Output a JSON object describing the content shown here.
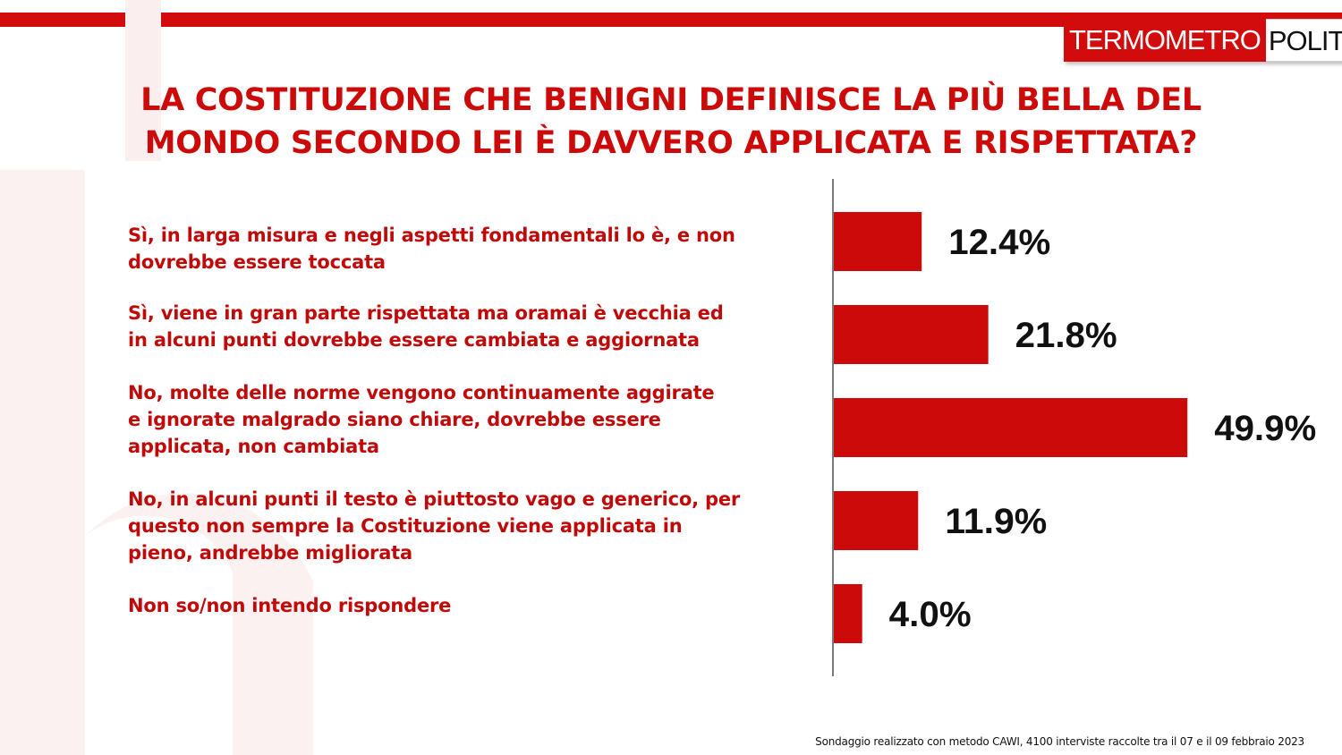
{
  "header": {
    "logo_left": "TERMOMETRO",
    "logo_right": "POLITICO",
    "brand_color": "#d20c0c"
  },
  "title_line1": "LA COSTITUZIONE CHE BENIGNI DEFINISCE LA PIÙ BELLA DEL",
  "title_line2": "MONDO SECONDO LEI È DAVVERO APPLICATA E RISPETTATA?",
  "chart_data": {
    "type": "bar",
    "orientation": "horizontal",
    "categories": [
      "Sì, in larga misura e negli aspetti fondamentali lo è, e non dovrebbe essere toccata",
      "Sì, viene in gran parte rispettata ma oramai è vecchia ed in alcuni punti dovrebbe essere cambiata e aggiornata",
      "No, molte delle norme vengono continuamente aggirate e ignorate malgrado siano chiare, dovrebbe essere applicata, non cambiata",
      "No, in alcuni punti il testo è piuttosto vago e generico, per questo non sempre la Costituzione viene applicata in pieno, andrebbe migliorata",
      "Non so/non intendo rispondere"
    ],
    "values": [
      12.4,
      21.8,
      49.9,
      11.9,
      4.0
    ],
    "labels": [
      "12.4%",
      "21.8%",
      "49.9%",
      "11.9%",
      "4.0%"
    ],
    "bar_color": "#cc0a0a",
    "grid": false
  },
  "answers": [
    {
      "line1": "Sì, in larga misura e negli aspetti fondamentali lo è, e non",
      "line2": "dovrebbe essere toccata",
      "line3": ""
    },
    {
      "line1": "Sì, viene in gran parte rispettata ma oramai è vecchia ed",
      "line2": "in alcuni punti dovrebbe essere cambiata e aggiornata",
      "line3": ""
    },
    {
      "line1": "No, molte delle norme vengono continuamente aggirate",
      "line2": "e ignorate malgrado siano chiare, dovrebbe essere",
      "line3": "applicata, non cambiata"
    },
    {
      "line1": "No, in alcuni punti il testo è piuttosto vago e generico, per",
      "line2": "questo non sempre la Costituzione viene applicata in",
      "line3": "pieno, andrebbe migliorata"
    },
    {
      "line1": "Non so/non intendo rispondere",
      "line2": "",
      "line3": ""
    }
  ],
  "footer": "Sondaggio realizzato con metodo CAWI, 4100 interviste raccolte tra il 07 e il 09 febbraio 2023"
}
